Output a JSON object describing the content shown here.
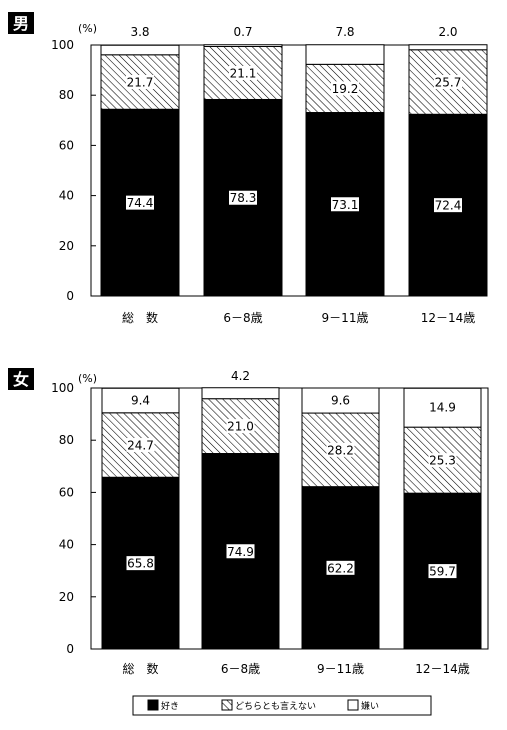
{
  "chart_data": [
    {
      "type": "bar",
      "title": "男",
      "yunit": "(%)",
      "ylim": [
        0,
        100
      ],
      "yticks": [
        0,
        20,
        40,
        60,
        80,
        100
      ],
      "categories": [
        "総　数",
        "6－8歳",
        "9－11歳",
        "12－14歳"
      ],
      "series": [
        {
          "name": "好き",
          "values": [
            74.4,
            78.3,
            73.1,
            72.4
          ],
          "labels": [
            "74.4",
            "78.3",
            "73.1",
            "72.4"
          ]
        },
        {
          "name": "どちらとも言えない",
          "values": [
            21.7,
            21.1,
            19.2,
            25.7
          ],
          "labels": [
            "21.7",
            "21.1",
            "19.2",
            "25.7"
          ]
        },
        {
          "name": "嫌い",
          "values": [
            3.8,
            0.7,
            7.8,
            2.0
          ],
          "labels": [
            "3.8",
            "0.7",
            "7.8",
            "2.0"
          ]
        }
      ]
    },
    {
      "type": "bar",
      "title": "女",
      "yunit": "(%)",
      "ylim": [
        0,
        100
      ],
      "yticks": [
        0,
        20,
        40,
        60,
        80,
        100
      ],
      "categories": [
        "総　数",
        "6－8歳",
        "9－11歳",
        "12－14歳"
      ],
      "series": [
        {
          "name": "好き",
          "values": [
            65.8,
            74.9,
            62.2,
            59.7
          ],
          "labels": [
            "65.8",
            "74.9",
            "62.2",
            "59.7"
          ]
        },
        {
          "name": "どちらとも言えない",
          "values": [
            24.7,
            21.0,
            28.2,
            25.3
          ],
          "labels": [
            "24.7",
            "21.0",
            "28.2",
            "25.3"
          ]
        },
        {
          "name": "嫌い",
          "values": [
            9.4,
            4.2,
            9.6,
            14.9
          ],
          "labels": [
            "9.4",
            "4.2",
            "9.6",
            "14.9"
          ]
        }
      ]
    }
  ],
  "legend": {
    "position": "bottom",
    "items": [
      {
        "label": "好き",
        "fill": "solid-black"
      },
      {
        "label": "どちらとも言えない",
        "fill": "hatched"
      },
      {
        "label": "嫌い",
        "fill": "white"
      }
    ]
  }
}
